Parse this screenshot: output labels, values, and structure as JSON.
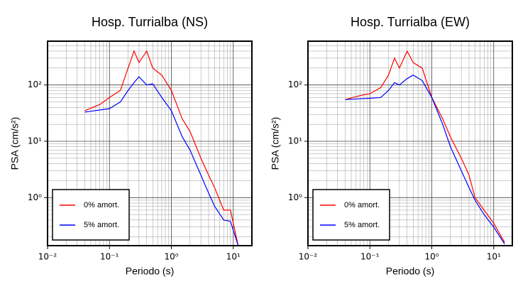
{
  "chart_data": [
    {
      "type": "line",
      "title": "Hosp. Turrialba (NS)",
      "xlabel": "Periodo (s)",
      "ylabel": "PSA (cm/s²)",
      "log_x": true,
      "log_y": true,
      "grid": true,
      "minor_grid": true,
      "legend": "lower left",
      "xlim": [
        0.01,
        20
      ],
      "ylim": [
        0.14,
        600
      ],
      "xticks": [
        {
          "value": 0.01,
          "label": "10⁻²"
        },
        {
          "value": 0.1,
          "label": "10⁻¹"
        },
        {
          "value": 1,
          "label": "10⁰"
        },
        {
          "value": 10,
          "label": "10¹"
        }
      ],
      "yticks": [
        {
          "value": 1,
          "label": "10⁰"
        },
        {
          "value": 10,
          "label": "10¹"
        },
        {
          "value": 100,
          "label": "10²"
        }
      ],
      "x": [
        0.04,
        0.07,
        0.1,
        0.15,
        0.2,
        0.25,
        0.3,
        0.4,
        0.5,
        0.7,
        1,
        1.5,
        2,
        3,
        4,
        5,
        7,
        9,
        12
      ],
      "series": [
        {
          "name": "0% amort.",
          "color": "#ff0000",
          "values": [
            35,
            45,
            60,
            80,
            200,
            400,
            250,
            400,
            200,
            150,
            80,
            25,
            15,
            5,
            2.5,
            1.5,
            0.6,
            0.6,
            0.14
          ]
        },
        {
          "name": "5% amort.",
          "color": "#0000ff",
          "values": [
            33,
            36,
            38,
            50,
            80,
            110,
            140,
            100,
            105,
            60,
            35,
            12,
            7,
            2.5,
            1.2,
            0.7,
            0.4,
            0.38,
            0.14
          ]
        }
      ]
    },
    {
      "type": "line",
      "title": "Hosp. Turrialba (EW)",
      "xlabel": "Periodo (s)",
      "ylabel": "PSA (cm/s²)",
      "log_x": true,
      "log_y": true,
      "grid": true,
      "minor_grid": true,
      "legend": "lower left",
      "xlim": [
        0.01,
        20
      ],
      "ylim": [
        0.14,
        600
      ],
      "xticks": [
        {
          "value": 0.01,
          "label": "10⁻²"
        },
        {
          "value": 0.1,
          "label": "10⁻¹"
        },
        {
          "value": 1,
          "label": "10⁰"
        },
        {
          "value": 10,
          "label": "10¹"
        }
      ],
      "yticks": [
        {
          "value": 1,
          "label": "10⁰"
        },
        {
          "value": 10,
          "label": "10¹"
        },
        {
          "value": 100,
          "label": "10²"
        }
      ],
      "x": [
        0.04,
        0.07,
        0.1,
        0.15,
        0.2,
        0.25,
        0.3,
        0.4,
        0.5,
        0.7,
        1,
        1.5,
        2,
        3,
        4,
        5,
        7,
        10,
        15
      ],
      "series": [
        {
          "name": "0% amort.",
          "color": "#ff0000",
          "values": [
            55,
            65,
            70,
            90,
            150,
            300,
            200,
            400,
            250,
            200,
            60,
            25,
            12,
            5,
            2.5,
            1,
            0.6,
            0.35,
            0.16
          ]
        },
        {
          "name": "5% amort.",
          "color": "#0000ff",
          "values": [
            55,
            57,
            58,
            60,
            80,
            110,
            100,
            130,
            150,
            120,
            60,
            20,
            8,
            3,
            1.5,
            0.9,
            0.5,
            0.3,
            0.15
          ]
        }
      ]
    }
  ]
}
